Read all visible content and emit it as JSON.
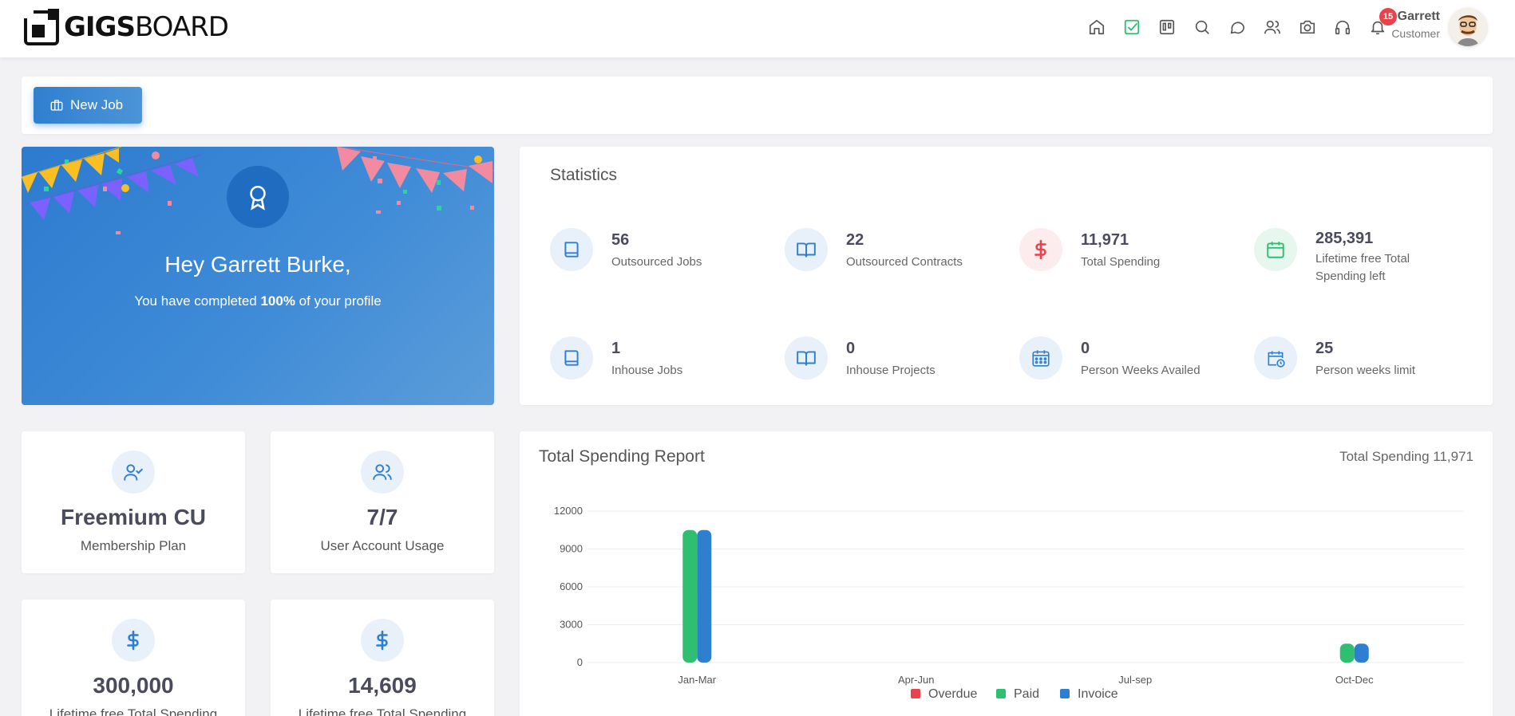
{
  "header": {
    "logo_bold": "GIGS",
    "logo_thin": "BOARD",
    "notification_count": "15",
    "user_name": "Garrett",
    "user_role": "Customer",
    "nav_icons": [
      "home-icon",
      "tasks-check-icon",
      "board-icon",
      "search-icon",
      "chat-icon",
      "users-icon",
      "camera-icon",
      "headset-icon",
      "bell-icon"
    ]
  },
  "actions": {
    "new_job_label": "New Job"
  },
  "hero": {
    "title": "Hey Garrett Burke,",
    "sub_before": "You have completed ",
    "sub_bold": "100%",
    "sub_after": " of your profile"
  },
  "statistics": {
    "title": "Statistics",
    "items": [
      {
        "value": "56",
        "label": "Outsourced Jobs",
        "icon": "book-icon",
        "color": "#2f7fd0"
      },
      {
        "value": "22",
        "label": "Outsourced Contracts",
        "icon": "open-book-icon",
        "color": "#2f7fd0"
      },
      {
        "value": "11,971",
        "label": "Total Spending",
        "icon": "dollar-icon",
        "color": "#e8424c"
      },
      {
        "value": "285,391",
        "label": "Lifetime free Total Spending left",
        "icon": "calendar-icon",
        "color": "#2fbf71"
      },
      {
        "value": "1",
        "label": "Inhouse Jobs",
        "icon": "book-icon",
        "color": "#2f7fd0"
      },
      {
        "value": "0",
        "label": "Inhouse Projects",
        "icon": "open-book-icon",
        "color": "#2f7fd0"
      },
      {
        "value": "0",
        "label": "Person Weeks Availed",
        "icon": "week-calendar-icon",
        "color": "#2f7fd0"
      },
      {
        "value": "25",
        "label": "Person weeks limit",
        "icon": "calendar-clock-icon",
        "color": "#2f7fd0"
      }
    ]
  },
  "cards": [
    {
      "value": "Freemium CU",
      "label": "Membership Plan",
      "icon": "user-check-icon"
    },
    {
      "value": "7/7",
      "label": "User Account Usage",
      "icon": "users-icon"
    },
    {
      "value": "300,000",
      "label": "Lifetime free Total Spending",
      "icon": "dollar-icon"
    },
    {
      "value": "14,609",
      "label": "Lifetime free Total Spending",
      "icon": "dollar-icon"
    }
  ],
  "report": {
    "title": "Total Spending Report",
    "total": "Total Spending 11,971"
  },
  "chart_data": {
    "type": "bar",
    "title": "Total Spending Report",
    "categories": [
      "Jan-Mar",
      "Apr-Jun",
      "Jul-sep",
      "Oct-Dec"
    ],
    "series": [
      {
        "name": "Overdue",
        "color": "#e8424c",
        "values": [
          0,
          0,
          0,
          0
        ]
      },
      {
        "name": "Paid",
        "color": "#2fbf71",
        "values": [
          10500,
          0,
          0,
          1500
        ]
      },
      {
        "name": "Invoice",
        "color": "#2f7fd0",
        "values": [
          10500,
          0,
          0,
          1500
        ]
      }
    ],
    "yticks": [
      0,
      3000,
      6000,
      9000,
      12000
    ],
    "ylim": [
      0,
      12000
    ],
    "grid": true,
    "legend": "bottom"
  }
}
